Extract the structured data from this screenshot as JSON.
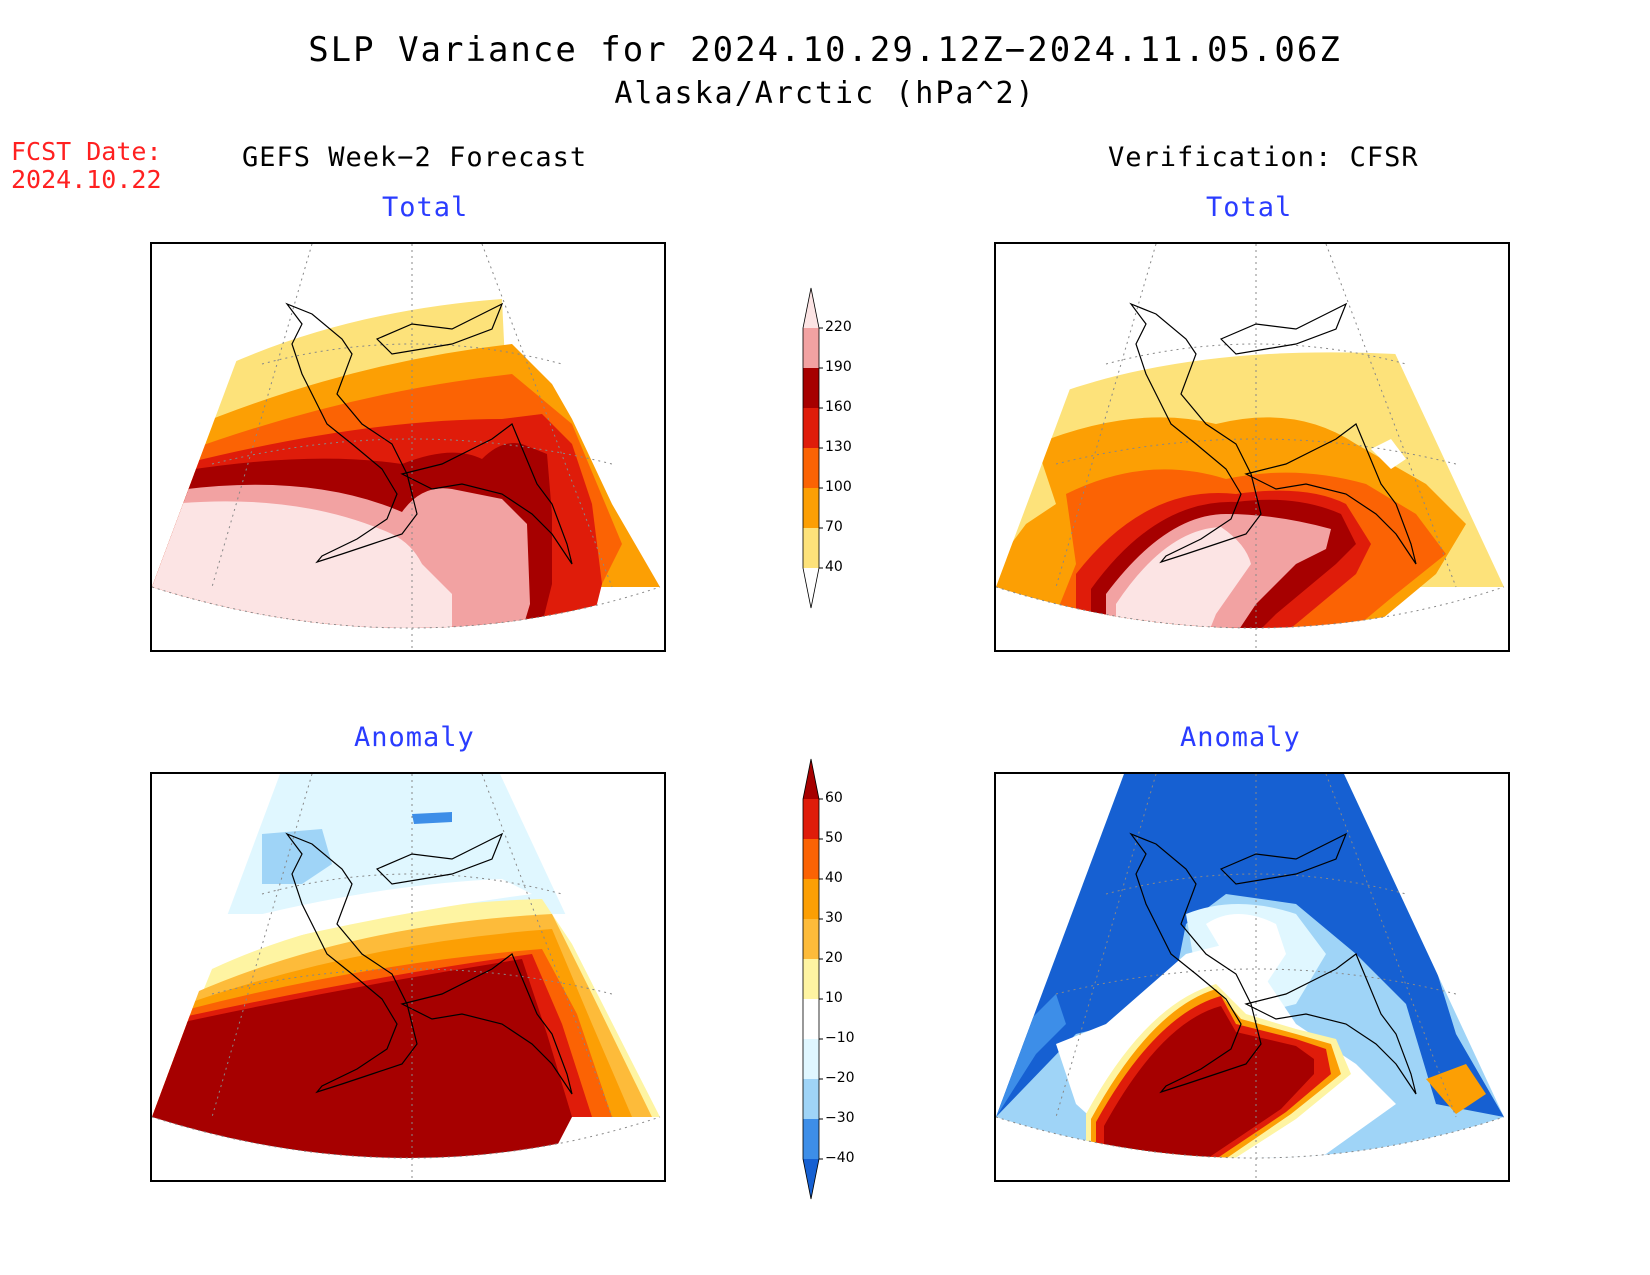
{
  "title": "SLP Variance for 2024.10.29.12Z−2024.11.05.06Z",
  "subtitle": "Alaska/Arctic (hPa^2)",
  "fcst_date": {
    "label": "FCST Date:",
    "value": "2024.10.22"
  },
  "columns": [
    {
      "header": "GEFS Week−2 Forecast"
    },
    {
      "header": "Verification: CFSR"
    }
  ],
  "rows": [
    {
      "label": "Total"
    },
    {
      "label": "Anomaly"
    }
  ],
  "colorbars": {
    "total": {
      "levels": [
        "220",
        "190",
        "160",
        "130",
        "100",
        "70",
        "40"
      ],
      "colors": [
        "#fce4e4",
        "#f2a2a2",
        "#a60000",
        "#df1c0a",
        "#fb6304",
        "#fc9f04",
        "#fde27a",
        "#ffffff"
      ]
    },
    "anomaly": {
      "levels": [
        "60",
        "50",
        "40",
        "30",
        "20",
        "10",
        "−10",
        "−20",
        "−30",
        "−40"
      ],
      "colors": [
        "#a60000",
        "#df1c0a",
        "#fb6304",
        "#fc9f04",
        "#fdbb3a",
        "#fef4a2",
        "#ffffff",
        "#e0f7ff",
        "#9fd4f7",
        "#3d8ee8",
        "#1660d2"
      ]
    }
  },
  "panels": [
    {
      "id": "gefs-total",
      "colors": [
        "#fde27a",
        "#fc9f04",
        "#fb6304",
        "#df1c0a",
        "#a60000",
        "#f2a2a2",
        "#fce4e4"
      ]
    },
    {
      "id": "cfsr-total",
      "colors": [
        "#fde27a",
        "#fc9f04",
        "#fb6304",
        "#df1c0a",
        "#a60000",
        "#f2a2a2",
        "#fce4e4"
      ]
    },
    {
      "id": "gefs-anomaly",
      "colors": [
        "#e0f7ff",
        "#9fd4f7",
        "#fef4a2",
        "#fdbb3a",
        "#fc9f04",
        "#fb6304",
        "#df1c0a",
        "#a60000"
      ]
    },
    {
      "id": "cfsr-anomaly",
      "colors": [
        "#1660d2",
        "#3d8ee8",
        "#9fd4f7",
        "#e0f7ff",
        "#fef4a2",
        "#fc9f04",
        "#df1c0a",
        "#a60000"
      ]
    }
  ]
}
